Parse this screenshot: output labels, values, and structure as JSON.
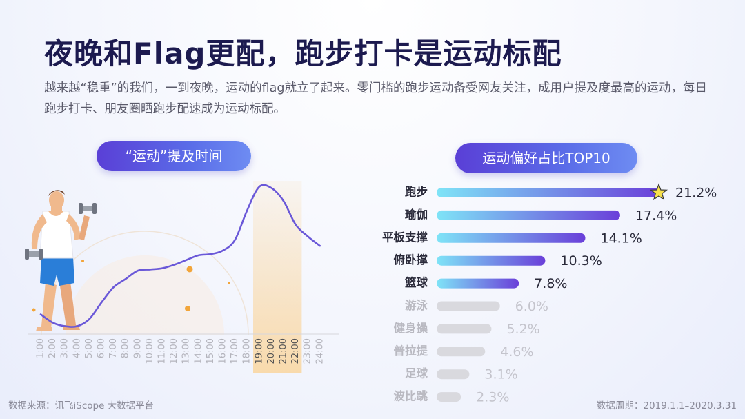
{
  "header": {
    "title": "夜晚和Flag更配，跑步打卡是运动标配",
    "subtitle": "越来越“稳重”的我们，一到夜晚，运动的flag就立了起来。零门槛的跑步运动备受网友关注，成用户提及度最高的运动，每日跑步打卡、朋友圈晒跑步配速成为运动标配。"
  },
  "footer": {
    "source": "数据来源：讯飞iScope 大数据平台",
    "period": "数据周期：2019.1.1–2020.3.31"
  },
  "colors": {
    "title": "#1c1a4f",
    "line": "#6a58d8",
    "highlight_band": "#f9d9a8",
    "bar_start": "#7fe4f7",
    "bar_end": "#6a3fd9",
    "bar_grey": "#d9d9de",
    "star": "#f7e04a"
  },
  "chart_data": [
    {
      "type": "line",
      "title": "“运动”提及时间",
      "x": [
        "1:00",
        "2:00",
        "3:00",
        "4:00",
        "5:00",
        "6:00",
        "7:00",
        "8:00",
        "9:00",
        "10:00",
        "11:00",
        "12:00",
        "13:00",
        "14:00",
        "15:00",
        "16:00",
        "17:00",
        "18:00",
        "19:00",
        "20:00",
        "21:00",
        "22:00",
        "23:00",
        "24:00"
      ],
      "values": [
        12,
        5,
        2,
        2,
        8,
        22,
        35,
        42,
        49,
        50,
        51,
        54,
        58,
        62,
        63,
        66,
        75,
        100,
        120,
        119,
        108,
        88,
        78,
        70
      ],
      "highlight_range": [
        "19:00",
        "22:00"
      ],
      "ylim": [
        0,
        125
      ],
      "y_axis_shown": false
    },
    {
      "type": "bar",
      "orientation": "horizontal",
      "title": "运动偏好占比TOP10",
      "categories": [
        "跑步",
        "瑜伽",
        "平板支撑",
        "俯卧撑",
        "篮球",
        "游泳",
        "健身操",
        "普拉提",
        "足球",
        "波比跳"
      ],
      "values": [
        21.2,
        17.4,
        14.1,
        10.3,
        7.8,
        6.0,
        5.2,
        4.6,
        3.1,
        2.3
      ],
      "labels": [
        "21.2%",
        "17.4%",
        "14.1%",
        "10.3%",
        "7.8%",
        "6.0%",
        "5.2%",
        "4.6%",
        "3.1%",
        "2.3%"
      ],
      "highlighted_count": 5,
      "top_marker": "star-icon"
    }
  ]
}
